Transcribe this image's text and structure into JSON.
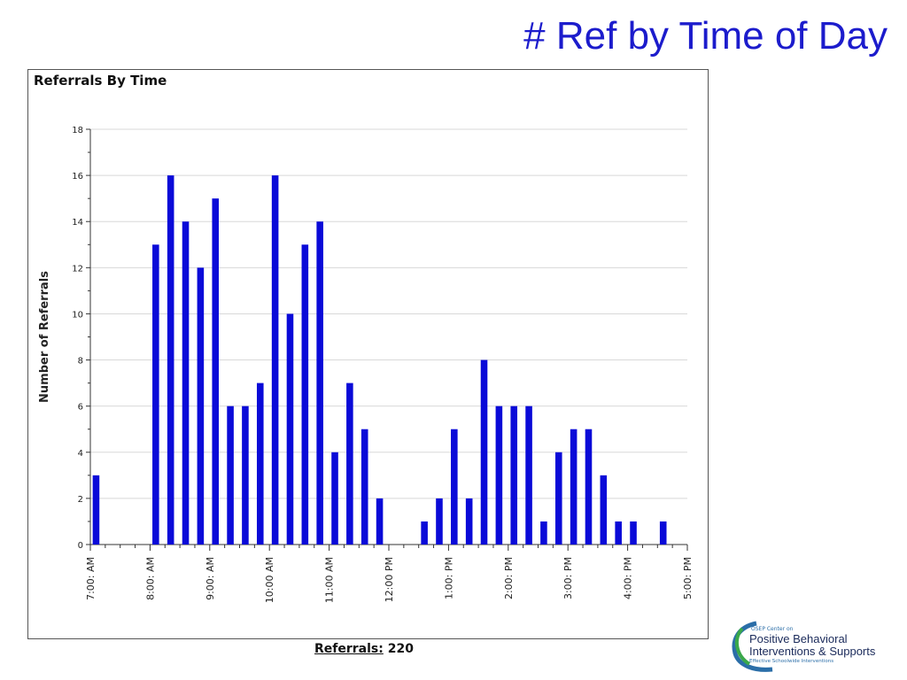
{
  "slide": {
    "title": "# Ref by Time of Day"
  },
  "summary": {
    "label": "Referrals:",
    "value": "220"
  },
  "logo": {
    "line1": "OSEP Center on",
    "line2": "Positive Behavioral",
    "line3": "Interventions & Supports",
    "line4": "Effective Schoolwide Interventions"
  },
  "colors": {
    "bar": "#0a0ad8",
    "title": "#1c1ccc",
    "grid": "#d8d8d8"
  },
  "chart_data": {
    "type": "bar",
    "title": "Referrals By Time",
    "xlabel": "",
    "ylabel": "Number of Referrals",
    "ylim": [
      0,
      18
    ],
    "yticks": [
      0,
      2,
      4,
      6,
      8,
      10,
      12,
      14,
      16,
      18
    ],
    "grid": true,
    "x_ticks": [
      "7:00: AM",
      "8:00: AM",
      "9:00: AM",
      "10:00 AM",
      "11:00 AM",
      "12:00 PM",
      "1:00: PM",
      "2:00: PM",
      "3:00: PM",
      "4:00: PM",
      "5:00: PM"
    ],
    "x_range": [
      "7:00: AM",
      "5:00: PM"
    ],
    "interval_minutes": 15,
    "x": [
      "7:00 AM",
      "7:15 AM",
      "7:30 AM",
      "7:45 AM",
      "8:00 AM",
      "8:15 AM",
      "8:30 AM",
      "8:45 AM",
      "9:00 AM",
      "9:15 AM",
      "9:30 AM",
      "9:45 AM",
      "10:00 AM",
      "10:15 AM",
      "10:30 AM",
      "10:45 AM",
      "11:00 AM",
      "11:15 AM",
      "11:30 AM",
      "11:45 AM",
      "12:00 PM",
      "12:15 PM",
      "12:30 PM",
      "12:45 PM",
      "1:00 PM",
      "1:15 PM",
      "1:30 PM",
      "1:45 PM",
      "2:00 PM",
      "2:15 PM",
      "2:30 PM",
      "2:45 PM",
      "3:00 PM",
      "3:15 PM",
      "3:30 PM",
      "3:45 PM",
      "4:00 PM",
      "4:15 PM",
      "4:30 PM",
      "4:45 PM"
    ],
    "values": [
      3,
      0,
      0,
      0,
      13,
      16,
      14,
      12,
      15,
      6,
      6,
      7,
      16,
      10,
      13,
      14,
      4,
      7,
      5,
      2,
      0,
      0,
      1,
      2,
      5,
      2,
      8,
      6,
      6,
      6,
      1,
      4,
      5,
      5,
      3,
      1,
      1,
      0,
      1,
      0
    ]
  }
}
